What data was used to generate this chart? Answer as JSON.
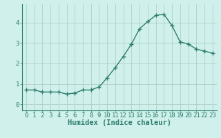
{
  "x": [
    0,
    1,
    2,
    3,
    4,
    5,
    6,
    7,
    8,
    9,
    10,
    11,
    12,
    13,
    14,
    15,
    16,
    17,
    18,
    19,
    20,
    21,
    22,
    23
  ],
  "y": [
    0.7,
    0.7,
    0.6,
    0.6,
    0.6,
    0.5,
    0.55,
    0.7,
    0.7,
    0.85,
    1.3,
    1.8,
    2.35,
    2.95,
    3.7,
    4.05,
    4.35,
    4.4,
    3.85,
    3.05,
    2.95,
    2.7,
    2.6,
    2.5
  ],
  "line_color": "#2e7d6e",
  "marker": "D",
  "marker_size": 2.5,
  "bg_color": "#cff0eb",
  "grid_color": "#aac8c2",
  "axis_color": "#2e7d6e",
  "xlabel": "Humidex (Indice chaleur)",
  "xlabel_color": "#2e7d6e",
  "xlim": [
    -0.5,
    23.5
  ],
  "ylim": [
    -0.3,
    4.9
  ],
  "yticks": [
    0,
    1,
    2,
    3,
    4
  ],
  "xticks": [
    0,
    1,
    2,
    3,
    4,
    5,
    6,
    7,
    8,
    9,
    10,
    11,
    12,
    13,
    14,
    15,
    16,
    17,
    18,
    19,
    20,
    21,
    22,
    23
  ],
  "tick_label_size": 6.5,
  "xlabel_size": 7.5,
  "linewidth": 1.0
}
